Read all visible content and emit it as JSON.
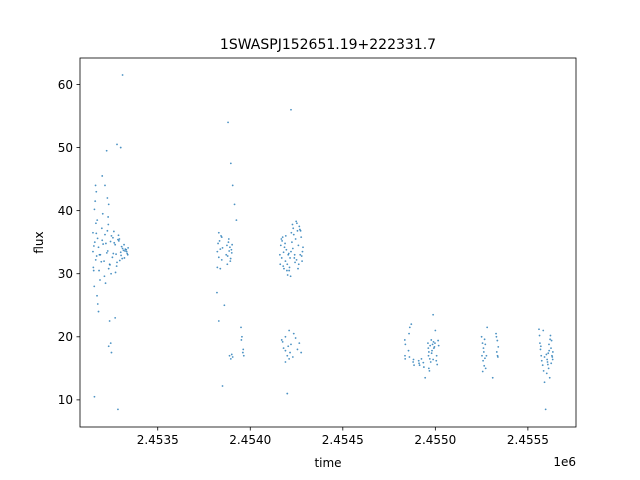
{
  "chart_data": {
    "type": "scatter",
    "title": "1SWASPJ152651.19+222331.7",
    "xlabel": "time",
    "ylabel": "flux",
    "x_offset_label": "1e6",
    "xlim": [
      2453080,
      2455760
    ],
    "ylim": [
      5.7,
      64.2
    ],
    "x_ticks": [
      2453500,
      2454000,
      2454500,
      2455000,
      2455500
    ],
    "x_tick_labels": [
      "2.4535",
      "2.4540",
      "2.4545",
      "2.4550",
      "2.4555"
    ],
    "y_ticks": [
      10,
      20,
      30,
      40,
      50,
      60
    ],
    "y_tick_labels": [
      "10",
      "20",
      "30",
      "40",
      "50",
      "60"
    ],
    "grid": false,
    "marker_color": "#1f77b4",
    "series": [
      {
        "x": [
          2453150,
          2453160,
          2453170,
          2453180,
          2453190,
          2453200,
          2453210,
          2453220,
          2453230,
          2453240,
          2453250,
          2453260,
          2453270,
          2453280,
          2453290,
          2453300,
          2453310,
          2453320,
          2453330,
          2453340,
          2453155,
          2453165,
          2453175,
          2453185,
          2453195,
          2453205,
          2453215,
          2453225,
          2453235,
          2453245,
          2453255,
          2453265,
          2453275,
          2453285,
          2453295,
          2453305,
          2453315,
          2453325,
          2453335,
          2453152,
          2453168,
          2453183,
          2453198,
          2453212,
          2453228,
          2453242,
          2453258,
          2453272,
          2453288,
          2453302,
          2453318,
          2453332,
          2453157,
          2453173,
          2453188,
          2453203,
          2453218,
          2453233,
          2453248,
          2453263,
          2453278,
          2453293,
          2453308,
          2453323,
          2453338,
          2453158,
          2453162,
          2453166,
          2453172,
          2453176,
          2453180,
          2453228,
          2453232,
          2453240,
          2453150,
          2453154,
          2453200,
          2453215,
          2453235,
          2453270,
          2453158,
          2453164,
          2453168,
          2453224,
          2453280,
          2453300,
          2453250,
          2453235,
          2453246,
          2453285,
          2453310
        ],
        "y": [
          33.5,
          35.0,
          32.8,
          34.2,
          33.0,
          35.3,
          32.0,
          34.8,
          33.6,
          31.5,
          36.0,
          33.2,
          34.6,
          31.8,
          35.2,
          33.4,
          34.0,
          32.5,
          33.8,
          34.1,
          34.4,
          32.2,
          35.6,
          33.0,
          31.9,
          34.7,
          36.2,
          33.3,
          30.8,
          35.1,
          32.6,
          34.9,
          33.1,
          35.4,
          32.1,
          34.3,
          33.7,
          33.9,
          33.2,
          31.0,
          36.4,
          30.5,
          37.2,
          29.6,
          36.8,
          31.4,
          35.7,
          30.2,
          36.1,
          32.9,
          34.6,
          33.5,
          28.0,
          38.5,
          29.0,
          39.5,
          28.5,
          37.8,
          30.0,
          36.7,
          31.2,
          35.5,
          32.4,
          33.6,
          33.0,
          40.2,
          41.5,
          38.0,
          26.5,
          25.2,
          24.0,
          42.0,
          39.0,
          22.5,
          36.5,
          30.5,
          45.5,
          44.0,
          41.0,
          23.0,
          10.5,
          44.0,
          43.0,
          49.5,
          50.5,
          50.0,
          17.5,
          18.5,
          19.0,
          8.5,
          61.5
        ],
        "name": ""
      },
      {
        "x": [
          2453822,
          2453826,
          2453830,
          2453834,
          2453838,
          2453842,
          2453846,
          2453850,
          2453870,
          2453874,
          2453878,
          2453882,
          2453886,
          2453890,
          2453894,
          2453898,
          2453902,
          2453822,
          2453830,
          2453838,
          2453846,
          2453876,
          2453884,
          2453892,
          2453900,
          2453950,
          2453955,
          2453960,
          2453965,
          2453952,
          2453962,
          2453888,
          2453895,
          2453900,
          2453905,
          2453850,
          2453880,
          2453895,
          2453905,
          2453915,
          2453925,
          2453860,
          2453830,
          2453820
        ],
        "y": [
          33.5,
          34.8,
          32.6,
          35.2,
          33.9,
          36.0,
          32.2,
          34.1,
          33.0,
          34.5,
          32.8,
          35.0,
          33.6,
          34.2,
          32.4,
          33.8,
          34.6,
          31.0,
          36.5,
          30.8,
          35.8,
          31.5,
          35.5,
          32.0,
          33.3,
          21.5,
          20.0,
          17.5,
          17.0,
          19.5,
          18.0,
          17.0,
          16.5,
          17.2,
          16.8,
          12.2,
          54.0,
          47.5,
          44.0,
          41.0,
          38.5,
          25.0,
          22.5,
          27.0
        ],
        "name": ""
      },
      {
        "x": [
          2454160,
          2454165,
          2454170,
          2454175,
          2454180,
          2454185,
          2454190,
          2454195,
          2454200,
          2454205,
          2454210,
          2454215,
          2454220,
          2454225,
          2454230,
          2454235,
          2454240,
          2454245,
          2454250,
          2454255,
          2454260,
          2454265,
          2454270,
          2454275,
          2454280,
          2454285,
          2454162,
          2454172,
          2454182,
          2454192,
          2454202,
          2454212,
          2454222,
          2454232,
          2454242,
          2454252,
          2454262,
          2454272,
          2454282,
          2454168,
          2454178,
          2454188,
          2454198,
          2454208,
          2454218,
          2454228,
          2454238,
          2454248,
          2454258,
          2454268,
          2454278,
          2454170,
          2454180,
          2454190,
          2454200,
          2454210,
          2454220,
          2454230,
          2454175,
          2454190,
          2454205,
          2454215,
          2454235,
          2454245,
          2454255,
          2454265,
          2454275,
          2454200,
          2454210,
          2454190,
          2454220
        ],
        "y": [
          33.0,
          34.5,
          32.5,
          35.8,
          33.4,
          34.2,
          32.0,
          33.8,
          31.5,
          33.0,
          30.5,
          32.5,
          33.5,
          35.0,
          34.0,
          36.2,
          33.0,
          35.5,
          32.2,
          36.8,
          34.5,
          37.5,
          33.0,
          35.8,
          32.0,
          34.2,
          31.5,
          35.2,
          30.8,
          36.0,
          29.8,
          31.0,
          36.5,
          37.2,
          31.8,
          38.0,
          31.5,
          36.8,
          33.5,
          35.5,
          31.2,
          34.8,
          30.5,
          33.2,
          29.6,
          37.8,
          32.5,
          38.3,
          30.8,
          37.0,
          32.8,
          19.5,
          18.2,
          20.0,
          17.0,
          16.5,
          18.8,
          16.8,
          19.2,
          17.8,
          18.5,
          17.5,
          20.5,
          19.8,
          18.0,
          19.0,
          17.5,
          11.0,
          21.0,
          16.0,
          56.0
        ],
        "name": ""
      },
      {
        "x": [
          2454835,
          2454838,
          2454836,
          2454837,
          2454855,
          2454860,
          2454858,
          2454862,
          2454880,
          2454885,
          2454882,
          2454910,
          2454915,
          2454912,
          2454935,
          2454938,
          2454960,
          2454962,
          2454965,
          2454970,
          2454975,
          2454980,
          2454985,
          2454990,
          2454995,
          2455005,
          2455010,
          2455007,
          2455015,
          2455018,
          2454965,
          2454968,
          2454963,
          2454972,
          2454978,
          2454982,
          2454988,
          2454992,
          2454998,
          2455000,
          2454870,
          2454945,
          2454988,
          2454925
        ],
        "y": [
          19.5,
          18.8,
          17.0,
          16.5,
          17.8,
          16.8,
          20.5,
          21.5,
          16.0,
          15.5,
          16.4,
          16.2,
          15.5,
          15.8,
          15.9,
          15.2,
          19.0,
          18.2,
          17.6,
          16.5,
          16.0,
          17.4,
          18.8,
          19.2,
          18.4,
          16.2,
          15.6,
          17.0,
          19.4,
          18.6,
          15.0,
          14.6,
          17.0,
          18.6,
          19.5,
          17.8,
          16.4,
          18.2,
          19.0,
          21.0,
          22.0,
          13.5,
          23.5,
          16.5
        ],
        "name": ""
      },
      {
        "x": [
          2455255,
          2455260,
          2455262,
          2455266,
          2455270,
          2455258,
          2455264,
          2455268,
          2455272,
          2455276,
          2455250,
          2455256,
          2455252,
          2455330,
          2455335,
          2455332,
          2455338,
          2455340,
          2455328,
          2455336,
          2455280,
          2455310
        ],
        "y": [
          19.0,
          18.2,
          17.6,
          19.6,
          18.8,
          16.2,
          15.4,
          16.6,
          15.0,
          17.0,
          20.0,
          14.5,
          17.0,
          20.0,
          19.4,
          17.6,
          16.8,
          18.4,
          20.5,
          17.0,
          21.5,
          13.5
        ],
        "name": ""
      },
      {
        "x": [
          2455565,
          2455568,
          2455572,
          2455575,
          2455570,
          2455563,
          2455580,
          2455585,
          2455590,
          2455583,
          2455600,
          2455604,
          2455608,
          2455612,
          2455615,
          2455602,
          2455606,
          2455610,
          2455614,
          2455620,
          2455625,
          2455628,
          2455632,
          2455635,
          2455622,
          2455626,
          2455630,
          2455634,
          2455596,
          2455618,
          2455590,
          2455560
        ],
        "y": [
          19.0,
          18.0,
          17.0,
          16.2,
          18.5,
          20.2,
          15.5,
          14.6,
          16.8,
          21.0,
          17.2,
          16.4,
          15.6,
          15.0,
          17.8,
          14.2,
          16.0,
          17.4,
          18.8,
          19.6,
          18.2,
          19.4,
          16.8,
          17.6,
          20.2,
          15.8,
          17.0,
          16.4,
          8.5,
          13.5,
          12.8,
          21.2
        ],
        "name": ""
      }
    ]
  }
}
